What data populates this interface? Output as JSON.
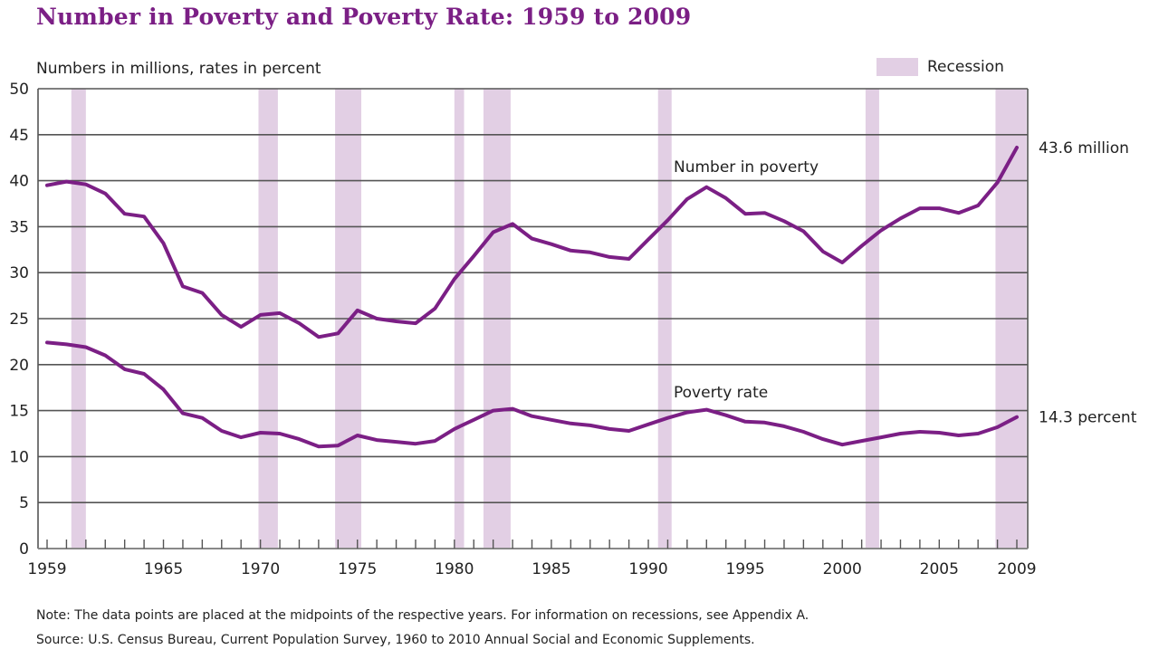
{
  "header": {
    "title": "Number in Poverty and Poverty Rate: 1959 to 2009",
    "subtitle": "Numbers in millions, rates in percent"
  },
  "legend": {
    "recession_label": "Recession",
    "recession_color": "#e2cfe4"
  },
  "footer": {
    "note": "Note:  The data points are placed at the midpoints of the respective years. For information on recessions, see Appendix A.",
    "source": "Source:  U.S. Census Bureau, Current Population Survey, 1960 to 2010 Annual Social and Economic Supplements."
  },
  "chart_data": {
    "type": "line",
    "title": "Number in Poverty and Poverty Rate: 1959 to 2009",
    "ylabel": "Numbers in millions, rates in percent",
    "xlabel": "",
    "ylim": [
      0,
      50
    ],
    "xlim": [
      1959,
      2009
    ],
    "yticks": [
      "0",
      "5",
      "10",
      "15",
      "20",
      "25",
      "30",
      "35",
      "40",
      "45",
      "50"
    ],
    "xticks": [
      "1959",
      "1965",
      "1970",
      "1975",
      "1980",
      "1985",
      "1990",
      "1995",
      "2000",
      "2005",
      "2009"
    ],
    "grid": true,
    "line_color": "#7b1f85",
    "x": [
      1959,
      1960,
      1961,
      1962,
      1963,
      1964,
      1965,
      1966,
      1967,
      1968,
      1969,
      1970,
      1971,
      1972,
      1973,
      1974,
      1975,
      1976,
      1977,
      1978,
      1979,
      1980,
      1981,
      1982,
      1983,
      1984,
      1985,
      1986,
      1987,
      1988,
      1989,
      1990,
      1991,
      1992,
      1993,
      1994,
      1995,
      1996,
      1997,
      1998,
      1999,
      2000,
      2001,
      2002,
      2003,
      2004,
      2005,
      2006,
      2007,
      2008,
      2009
    ],
    "series": [
      {
        "name": "Number in poverty",
        "end_label": "43.6 million",
        "values": [
          39.5,
          39.9,
          39.6,
          38.6,
          36.4,
          36.1,
          33.2,
          28.5,
          27.8,
          25.4,
          24.1,
          25.4,
          25.6,
          24.5,
          23.0,
          23.4,
          25.9,
          25.0,
          24.7,
          24.5,
          26.1,
          29.3,
          31.8,
          34.4,
          35.3,
          33.7,
          33.1,
          32.4,
          32.2,
          31.7,
          31.5,
          33.6,
          35.7,
          38.0,
          39.3,
          38.1,
          36.4,
          36.5,
          35.6,
          34.5,
          32.3,
          31.1,
          32.9,
          34.6,
          35.9,
          37.0,
          37.0,
          36.5,
          37.3,
          39.8,
          43.6
        ]
      },
      {
        "name": "Poverty rate",
        "end_label": "14.3 percent",
        "values": [
          22.4,
          22.2,
          21.9,
          21.0,
          19.5,
          19.0,
          17.3,
          14.7,
          14.2,
          12.8,
          12.1,
          12.6,
          12.5,
          11.9,
          11.1,
          11.2,
          12.3,
          11.8,
          11.6,
          11.4,
          11.7,
          13.0,
          14.0,
          15.0,
          15.2,
          14.4,
          14.0,
          13.6,
          13.4,
          13.0,
          12.8,
          13.5,
          14.2,
          14.8,
          15.1,
          14.5,
          13.8,
          13.7,
          13.3,
          12.7,
          11.9,
          11.3,
          11.7,
          12.1,
          12.5,
          12.7,
          12.6,
          12.3,
          12.5,
          13.2,
          14.3
        ]
      }
    ],
    "recessions": [
      [
        1960.25,
        1961.0
      ],
      [
        1969.9,
        1970.9
      ],
      [
        1973.85,
        1975.2
      ],
      [
        1980.0,
        1980.5
      ],
      [
        1981.5,
        1982.9
      ],
      [
        1990.5,
        1991.2
      ],
      [
        2001.2,
        2001.9
      ],
      [
        2007.9,
        2009.5
      ]
    ]
  }
}
